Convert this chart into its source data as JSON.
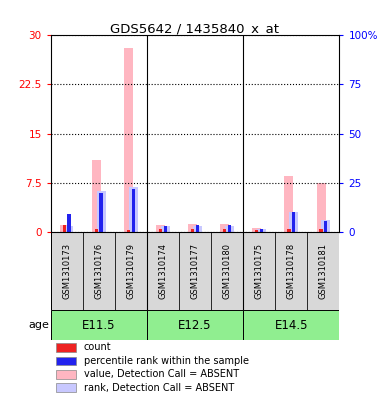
{
  "title": "GDS5642 / 1435840_x_at",
  "samples": [
    "GSM1310173",
    "GSM1310176",
    "GSM1310179",
    "GSM1310174",
    "GSM1310177",
    "GSM1310180",
    "GSM1310175",
    "GSM1310178",
    "GSM1310181"
  ],
  "groups": [
    {
      "label": "E11.5",
      "color": "#90EE90",
      "members": [
        0,
        1,
        2
      ]
    },
    {
      "label": "E12.5",
      "color": "#90EE90",
      "members": [
        3,
        4,
        5
      ]
    },
    {
      "label": "E14.5",
      "color": "#90EE90",
      "members": [
        6,
        7,
        8
      ]
    }
  ],
  "value_absent": [
    1.0,
    11.0,
    28.0,
    1.0,
    1.2,
    1.2,
    0.6,
    8.5,
    7.5
  ],
  "rank_absent_pct": [
    3.0,
    21.0,
    23.0,
    3.0,
    3.0,
    3.0,
    1.5,
    10.0,
    6.0
  ],
  "count_val": [
    1.0,
    0.5,
    0.3,
    0.5,
    0.5,
    0.5,
    0.3,
    0.5,
    0.5
  ],
  "pct_rank": [
    9.0,
    20.0,
    22.0,
    3.0,
    3.5,
    3.5,
    1.5,
    10.0,
    5.5
  ],
  "ylim_left": [
    0,
    30
  ],
  "ylim_right": [
    0,
    100
  ],
  "yticks_left": [
    0,
    7.5,
    15.0,
    22.5,
    30
  ],
  "ytick_labels_left": [
    "0",
    "7.5",
    "15",
    "22.5",
    "30"
  ],
  "yticks_right": [
    0,
    25,
    50,
    75,
    100
  ],
  "ytick_labels_right": [
    "0",
    "25",
    "50",
    "75",
    "100%"
  ],
  "color_value_absent": "#FFB6C1",
  "color_rank_absent": "#C8C8FF",
  "color_count": "#EE2222",
  "color_pct_rank": "#2222EE",
  "group_sep": [
    2.5,
    5.5
  ],
  "legend_items": [
    {
      "label": "count",
      "color": "#EE2222"
    },
    {
      "label": "percentile rank within the sample",
      "color": "#2222EE"
    },
    {
      "label": "value, Detection Call = ABSENT",
      "color": "#FFB6C1"
    },
    {
      "label": "rank, Detection Call = ABSENT",
      "color": "#C8C8FF"
    }
  ]
}
